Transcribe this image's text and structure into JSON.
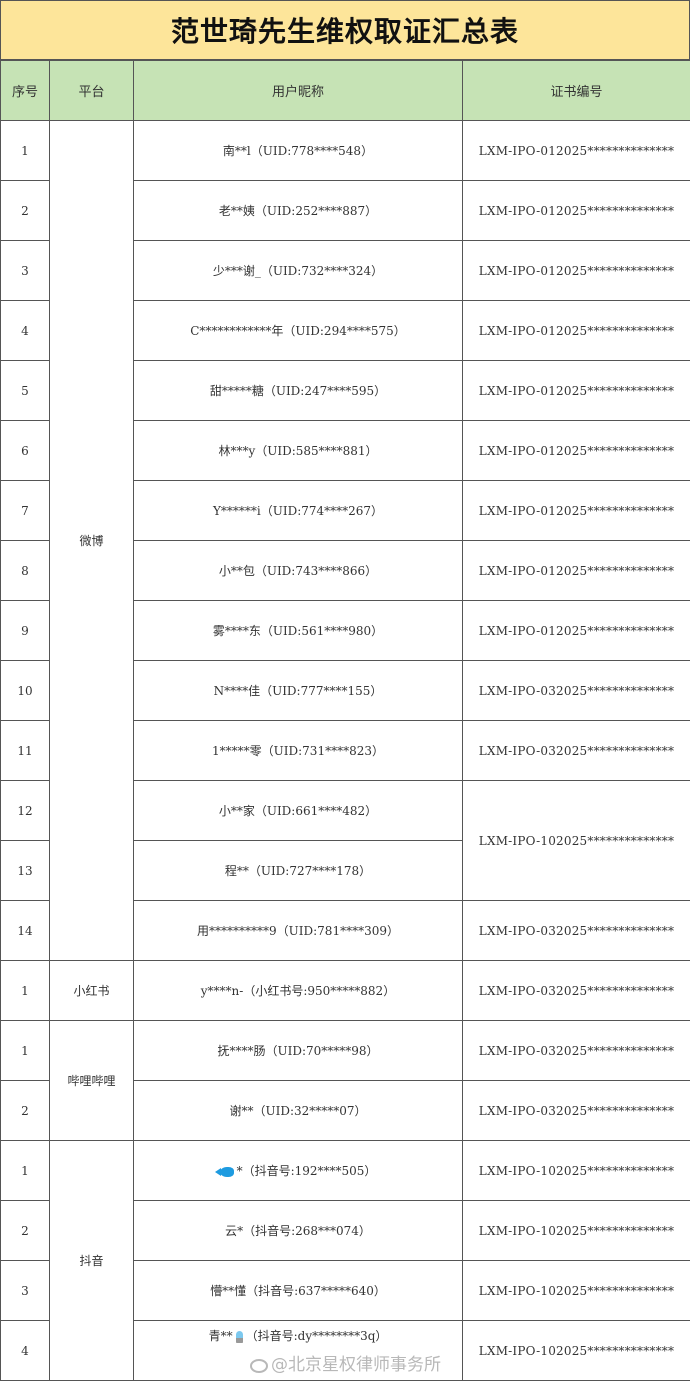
{
  "title": "范世琦先生维权取证汇总表",
  "headers": [
    "序号",
    "平台",
    "用户昵称",
    "证书编号"
  ],
  "groups": [
    {
      "platform": "微博",
      "rows": [
        {
          "no": "1",
          "name": "南**l（UID:778****548）",
          "cert": "LXM-IPO-012025**************"
        },
        {
          "no": "2",
          "name": "老**姨（UID:252****887）",
          "cert": "LXM-IPO-012025**************"
        },
        {
          "no": "3",
          "name": "少***谢_（UID:732****324）",
          "cert": "LXM-IPO-012025**************"
        },
        {
          "no": "4",
          "name": "C************年（UID:294****575）",
          "cert": "LXM-IPO-012025**************"
        },
        {
          "no": "5",
          "name": "甜*****糖（UID:247****595）",
          "cert": "LXM-IPO-012025**************"
        },
        {
          "no": "6",
          "name": "林***y（UID:585****881）",
          "cert": "LXM-IPO-012025**************"
        },
        {
          "no": "7",
          "name": "Y******i（UID:774****267）",
          "cert": "LXM-IPO-012025**************"
        },
        {
          "no": "8",
          "name": "小**包（UID:743****866）",
          "cert": "LXM-IPO-012025**************"
        },
        {
          "no": "9",
          "name": "雾****东（UID:561****980）",
          "cert": "LXM-IPO-012025**************"
        },
        {
          "no": "10",
          "name": "N****佳（UID:777****155）",
          "cert": "LXM-IPO-032025**************"
        },
        {
          "no": "11",
          "name": "1*****零（UID:731****823）",
          "cert": "LXM-IPO-032025**************"
        },
        {
          "no": "12",
          "name": "小**家（UID:661****482）",
          "cert": "LXM-IPO-102025**************",
          "cert_span": 2
        },
        {
          "no": "13",
          "name": "程**（UID:727****178）",
          "cert": null
        },
        {
          "no": "14",
          "name": "用**********9（UID:781****309）",
          "cert": "LXM-IPO-032025**************"
        }
      ]
    },
    {
      "platform": "小红书",
      "rows": [
        {
          "no": "1",
          "name": "y****n-（小红书号:950*****882）",
          "cert": "LXM-IPO-032025**************"
        }
      ]
    },
    {
      "platform": "哔哩哔哩",
      "rows": [
        {
          "no": "1",
          "name": "抚****肠（UID:70*****98）",
          "cert": "LXM-IPO-032025**************"
        },
        {
          "no": "2",
          "name": "谢**（UID:32*****07）",
          "cert": "LXM-IPO-032025**************"
        }
      ]
    },
    {
      "platform": "抖音",
      "rows": [
        {
          "no": "1",
          "icon_before": "fish-emoji-icon",
          "name": "*（抖音号:192****505）",
          "cert": "LXM-IPO-102025**************"
        },
        {
          "no": "2",
          "name": "云*（抖音号:268***074）",
          "cert": "LXM-IPO-102025**************"
        },
        {
          "no": "3",
          "name": "懵**懂（抖音号:637*****640）",
          "cert": "LXM-IPO-102025**************"
        },
        {
          "no": "4",
          "name_prefix": "青**",
          "icon_mid": "popsicle-emoji-icon",
          "name": "（抖音号:dy********3q）",
          "cert": "LXM-IPO-102025**************"
        }
      ]
    }
  ],
  "colors": {
    "title_bg": "#fde59a",
    "header_bg": "#c6e3b5",
    "emoji": "#1e9be0"
  },
  "watermark": "@北京星权律师事务所"
}
